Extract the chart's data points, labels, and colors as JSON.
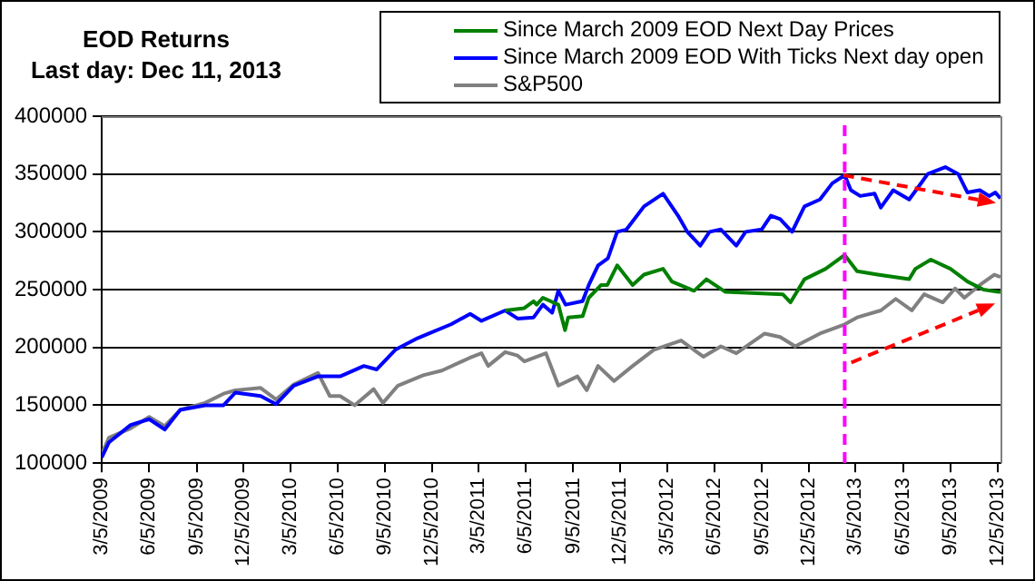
{
  "chart_data": {
    "type": "line",
    "title": "EOD Returns\nLast day: Dec 11, 2013",
    "legend": "top right",
    "grid": "y",
    "marker": "none",
    "line_style": "solid",
    "xlim": [
      "2009-03-05",
      "2013-12-11"
    ],
    "xticks": [
      {
        "value": "2009-03-05",
        "label": "3/5/2009"
      },
      {
        "value": "2009-06-05",
        "label": "6/5/2009"
      },
      {
        "value": "2009-09-05",
        "label": "9/5/2009"
      },
      {
        "value": "2009-12-05",
        "label": "12/5/2009"
      },
      {
        "value": "2010-03-05",
        "label": "3/5/2010"
      },
      {
        "value": "2010-06-05",
        "label": "6/5/2010"
      },
      {
        "value": "2010-09-05",
        "label": "9/5/2010"
      },
      {
        "value": "2010-12-05",
        "label": "12/5/2010"
      },
      {
        "value": "2011-03-05",
        "label": "3/5/2011"
      },
      {
        "value": "2011-06-05",
        "label": "6/5/2011"
      },
      {
        "value": "2011-09-05",
        "label": "9/5/2011"
      },
      {
        "value": "2011-12-05",
        "label": "12/5/2011"
      },
      {
        "value": "2012-03-05",
        "label": "3/5/2012"
      },
      {
        "value": "2012-06-05",
        "label": "6/5/2012"
      },
      {
        "value": "2012-09-05",
        "label": "9/5/2012"
      },
      {
        "value": "2012-12-05",
        "label": "12/5/2012"
      },
      {
        "value": "2013-03-05",
        "label": "3/5/2013"
      },
      {
        "value": "2013-06-05",
        "label": "6/5/2013"
      },
      {
        "value": "2013-09-05",
        "label": "9/5/2013"
      },
      {
        "value": "2013-12-05",
        "label": "12/5/2013"
      }
    ],
    "ylim": [
      100000,
      400000
    ],
    "yticks": [
      100000,
      150000,
      200000,
      250000,
      300000,
      350000,
      400000
    ],
    "ref_lines": [
      {
        "axis": "x",
        "value": "2013-02-12",
        "color": "#ff00ff",
        "line_style": "dashed"
      }
    ],
    "series": [
      {
        "name": "Since March 2009 EOD Next Day Prices",
        "color": "#008000",
        "x": [
          "2011-04-26",
          "2011-06-02",
          "2011-06-20",
          "2011-06-26",
          "2011-07-08",
          "2011-08-07",
          "2011-08-20",
          "2011-08-26",
          "2011-09-23",
          "2011-10-05",
          "2011-10-29",
          "2011-11-10",
          "2011-11-29",
          "2011-12-29",
          "2012-01-20",
          "2012-02-26",
          "2012-03-14",
          "2012-04-26",
          "2012-05-20",
          "2012-06-26",
          "2012-10-15",
          "2012-10-30",
          "2012-11-26",
          "2013-01-06",
          "2013-02-12",
          "2013-03-08",
          "2013-04-17",
          "2013-06-17",
          "2013-06-29",
          "2013-07-29",
          "2013-09-05",
          "2013-10-08",
          "2013-11-08",
          "2013-12-07",
          "2013-12-11"
        ],
        "values": [
          232000,
          234000,
          240000,
          237000,
          243000,
          237000,
          215000,
          226000,
          227000,
          243000,
          254000,
          254000,
          271000,
          254000,
          263000,
          268000,
          257000,
          249000,
          259000,
          248000,
          246000,
          239000,
          259000,
          268000,
          280000,
          266000,
          263000,
          259000,
          268000,
          276000,
          268000,
          257000,
          250000,
          248000,
          248000
        ]
      },
      {
        "name": "Since March 2009 EOD With Ticks Next day open",
        "color": "#0000ff",
        "x": [
          "2009-03-05",
          "2009-03-19",
          "2009-04-30",
          "2009-06-05",
          "2009-07-05",
          "2009-08-04",
          "2009-09-21",
          "2009-10-27",
          "2009-11-19",
          "2010-01-07",
          "2010-02-06",
          "2010-03-12",
          "2010-04-28",
          "2010-06-10",
          "2010-07-26",
          "2010-08-20",
          "2010-09-25",
          "2010-11-07",
          "2010-11-29",
          "2011-01-11",
          "2011-02-17",
          "2011-03-11",
          "2011-04-26",
          "2011-05-20",
          "2011-06-20",
          "2011-07-08",
          "2011-07-26",
          "2011-08-07",
          "2011-08-21",
          "2011-09-23",
          "2011-10-05",
          "2011-10-23",
          "2011-11-11",
          "2011-11-29",
          "2011-12-17",
          "2012-01-20",
          "2012-02-26",
          "2012-03-26",
          "2012-04-13",
          "2012-05-08",
          "2012-05-26",
          "2012-06-17",
          "2012-07-17",
          "2012-08-04",
          "2012-09-04",
          "2012-09-22",
          "2012-10-10",
          "2012-11-02",
          "2012-11-26",
          "2012-12-26",
          "2013-01-19",
          "2013-02-12",
          "2013-02-24",
          "2013-03-14",
          "2013-04-11",
          "2013-04-23",
          "2013-05-17",
          "2013-06-17",
          "2013-07-05",
          "2013-07-23",
          "2013-08-26",
          "2013-09-20",
          "2013-10-08",
          "2013-11-01",
          "2013-11-19",
          "2013-12-01",
          "2013-12-11"
        ],
        "values": [
          105000,
          118000,
          133000,
          138000,
          129000,
          146000,
          150000,
          150000,
          161000,
          158000,
          151000,
          167000,
          175000,
          175000,
          184000,
          181000,
          198000,
          208000,
          212000,
          220000,
          229000,
          223000,
          232000,
          225000,
          226000,
          237000,
          230000,
          249000,
          237000,
          240000,
          254000,
          271000,
          277000,
          300000,
          302000,
          322000,
          333000,
          314000,
          300000,
          288000,
          300000,
          302000,
          288000,
          300000,
          302000,
          314000,
          311000,
          300000,
          322000,
          328000,
          342000,
          349000,
          336000,
          331000,
          333000,
          321000,
          336000,
          328000,
          339000,
          350000,
          356000,
          350000,
          334000,
          336000,
          331000,
          334000,
          329000
        ]
      },
      {
        "name": "S&P500",
        "color": "#808080",
        "x": [
          "2009-03-05",
          "2009-03-19",
          "2009-04-30",
          "2009-06-05",
          "2009-07-05",
          "2009-08-04",
          "2009-09-21",
          "2009-10-27",
          "2009-11-19",
          "2010-01-07",
          "2010-02-06",
          "2010-03-12",
          "2010-04-28",
          "2010-05-21",
          "2010-06-10",
          "2010-07-08",
          "2010-08-14",
          "2010-09-01",
          "2010-09-30",
          "2010-11-18",
          "2010-12-24",
          "2011-02-16",
          "2011-03-11",
          "2011-03-24",
          "2011-04-26",
          "2011-05-20",
          "2011-06-02",
          "2011-07-14",
          "2011-08-07",
          "2011-09-13",
          "2011-10-01",
          "2011-10-23",
          "2011-11-23",
          "2011-12-29",
          "2012-02-08",
          "2012-04-01",
          "2012-05-14",
          "2012-06-17",
          "2012-07-17",
          "2012-09-10",
          "2012-10-10",
          "2012-11-08",
          "2012-12-26",
          "2013-02-12",
          "2013-03-08",
          "2013-04-23",
          "2013-05-22",
          "2013-06-22",
          "2013-07-16",
          "2013-08-21",
          "2013-09-14",
          "2013-10-02",
          "2013-11-01",
          "2013-11-29",
          "2013-12-11"
        ],
        "values": [
          108000,
          122000,
          130000,
          140000,
          132000,
          146000,
          152000,
          160000,
          163000,
          165000,
          155000,
          168000,
          178000,
          158000,
          158000,
          150000,
          164000,
          152000,
          167000,
          176000,
          180000,
          191000,
          195000,
          184000,
          196000,
          193000,
          188000,
          195000,
          167000,
          175000,
          163000,
          184000,
          171000,
          184000,
          198000,
          206000,
          192000,
          201000,
          195000,
          212000,
          209000,
          201000,
          212000,
          220000,
          226000,
          232000,
          242000,
          232000,
          246000,
          239000,
          251000,
          243000,
          254000,
          263000,
          261000
        ]
      }
    ]
  }
}
